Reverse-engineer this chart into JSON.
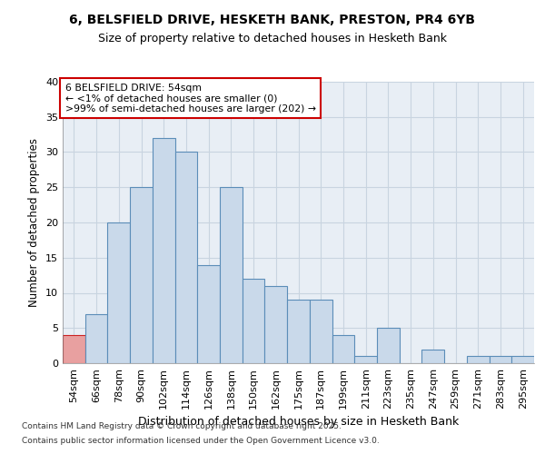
{
  "title1": "6, BELSFIELD DRIVE, HESKETH BANK, PRESTON, PR4 6YB",
  "title2": "Size of property relative to detached houses in Hesketh Bank",
  "xlabel": "Distribution of detached houses by size in Hesketh Bank",
  "ylabel": "Number of detached properties",
  "categories": [
    "54sqm",
    "66sqm",
    "78sqm",
    "90sqm",
    "102sqm",
    "114sqm",
    "126sqm",
    "138sqm",
    "150sqm",
    "162sqm",
    "175sqm",
    "187sqm",
    "199sqm",
    "211sqm",
    "223sqm",
    "235sqm",
    "247sqm",
    "259sqm",
    "271sqm",
    "283sqm",
    "295sqm"
  ],
  "values": [
    4,
    7,
    20,
    25,
    32,
    30,
    14,
    25,
    12,
    11,
    9,
    9,
    4,
    1,
    5,
    0,
    2,
    0,
    1,
    1,
    1
  ],
  "bar_color": "#c9d9ea",
  "bar_edge_color": "#5b8db8",
  "highlight_color": "#e8a0a0",
  "highlight_edge_color": "#cc2222",
  "highlight_index": 0,
  "annotation_title": "6 BELSFIELD DRIVE: 54sqm",
  "annotation_line1": "← <1% of detached houses are smaller (0)",
  "annotation_line2": ">99% of semi-detached houses are larger (202) →",
  "annotation_box_color": "#ffffff",
  "annotation_box_edge_color": "#cc0000",
  "footer1": "Contains HM Land Registry data © Crown copyright and database right 2025.",
  "footer2": "Contains public sector information licensed under the Open Government Licence v3.0.",
  "bg_color": "#ffffff",
  "plot_bg_color": "#e8eef5",
  "grid_color": "#c8d4e0",
  "ylim": [
    0,
    40
  ],
  "yticks": [
    0,
    5,
    10,
    15,
    20,
    25,
    30,
    35,
    40
  ]
}
